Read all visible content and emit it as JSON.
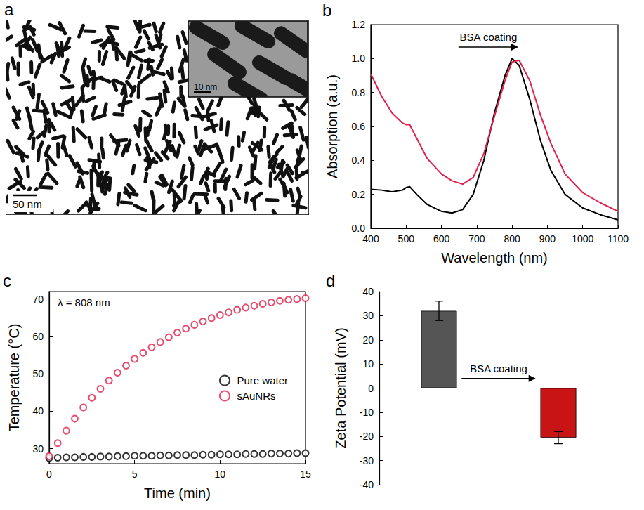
{
  "image_panel": {
    "panel_label": "a",
    "scale_bar": "50 nm",
    "inset_scale_bar": "10 nm"
  },
  "chart_data": [
    {
      "type": "line",
      "panel_label": "b",
      "x_label": "Wavelength (nm)",
      "y_label": "Absorption (a.u.)",
      "annotation": "BSA coating",
      "x": [
        400,
        430,
        460,
        490,
        500,
        510,
        530,
        560,
        600,
        630,
        660,
        690,
        720,
        750,
        780,
        800,
        820,
        850,
        880,
        910,
        950,
        1000,
        1050,
        1100
      ],
      "series": [
        {
          "color": "#000000",
          "line_style": "solid",
          "values": [
            0.23,
            0.225,
            0.215,
            0.225,
            0.24,
            0.245,
            0.2,
            0.14,
            0.1,
            0.09,
            0.11,
            0.2,
            0.4,
            0.68,
            0.9,
            1.0,
            0.96,
            0.76,
            0.52,
            0.34,
            0.2,
            0.12,
            0.08,
            0.05
          ]
        },
        {
          "color": "#e0204a",
          "line_style": "solid",
          "values": [
            0.91,
            0.78,
            0.68,
            0.62,
            0.61,
            0.61,
            0.53,
            0.41,
            0.32,
            0.28,
            0.26,
            0.3,
            0.44,
            0.66,
            0.87,
            0.98,
            0.99,
            0.87,
            0.67,
            0.5,
            0.32,
            0.21,
            0.15,
            0.1
          ]
        }
      ],
      "xlim": [
        400,
        1100
      ],
      "xticks": [
        400,
        500,
        600,
        700,
        800,
        900,
        1000,
        1100
      ],
      "ylim": [
        0,
        1.2
      ],
      "yticks": [
        {
          "value": 0,
          "label": "0.0"
        },
        {
          "value": 0.2,
          "label": "0.2"
        },
        {
          "value": 0.4,
          "label": "0.4"
        },
        {
          "value": 0.6,
          "label": "0.6"
        },
        {
          "value": 0.8,
          "label": "0.8"
        },
        {
          "value": 1.0,
          "label": "1.0"
        },
        {
          "value": 1.2,
          "label": "1.2"
        }
      ],
      "grid": false
    },
    {
      "type": "scatter",
      "panel_label": "c",
      "x_label": "Time (min)",
      "y_label": "Temperature (°C)",
      "annotation": "λ = 808 nm",
      "x": [
        0,
        0.5,
        1,
        1.5,
        2,
        2.5,
        3,
        3.5,
        4,
        4.5,
        5,
        5.5,
        6,
        6.5,
        7,
        7.5,
        8,
        8.5,
        9,
        9.5,
        10,
        10.5,
        11,
        11.5,
        12,
        12.5,
        13,
        13.5,
        14,
        14.5,
        15
      ],
      "series": [
        {
          "name": "Pure water",
          "color": "#000000",
          "marker": "circle_open",
          "values": [
            27.5,
            27.6,
            27.7,
            27.7,
            27.8,
            27.8,
            27.9,
            27.9,
            28.0,
            28.0,
            28.1,
            28.1,
            28.1,
            28.2,
            28.2,
            28.3,
            28.3,
            28.3,
            28.4,
            28.4,
            28.5,
            28.5,
            28.5,
            28.6,
            28.6,
            28.6,
            28.7,
            28.7,
            28.7,
            28.8,
            28.8
          ]
        },
        {
          "name": "sAuNRs",
          "color": "#e0204a",
          "marker": "circle_open",
          "values": [
            28,
            31.5,
            34.8,
            38,
            41,
            43.6,
            46,
            48.2,
            50.3,
            52.2,
            54,
            55.6,
            57.1,
            58.5,
            59.8,
            61,
            62.1,
            63.1,
            64,
            64.9,
            65.7,
            66.4,
            67.1,
            67.7,
            68.2,
            68.7,
            69.1,
            69.5,
            69.8,
            70,
            70.2
          ]
        }
      ],
      "xlim": [
        0,
        15
      ],
      "xticks": [
        0,
        5,
        10,
        15
      ],
      "ylim": [
        26,
        72
      ],
      "yticks": [
        30,
        40,
        50,
        60,
        70
      ],
      "legend": "right",
      "grid": false
    },
    {
      "type": "bar",
      "panel_label": "d",
      "y_label": "Zeta Potential (mV)",
      "annotation": "BSA coating",
      "categories": [
        null,
        null
      ],
      "values": [
        32,
        -20.5
      ],
      "errors": [
        4,
        2.5
      ],
      "colors": [
        "#555555",
        "#c81414"
      ],
      "ylim": [
        -40,
        40
      ],
      "yticks": [
        -40,
        -30,
        -20,
        -10,
        0,
        10,
        20,
        30,
        40
      ],
      "tick_labels": "y",
      "grid": false
    }
  ]
}
